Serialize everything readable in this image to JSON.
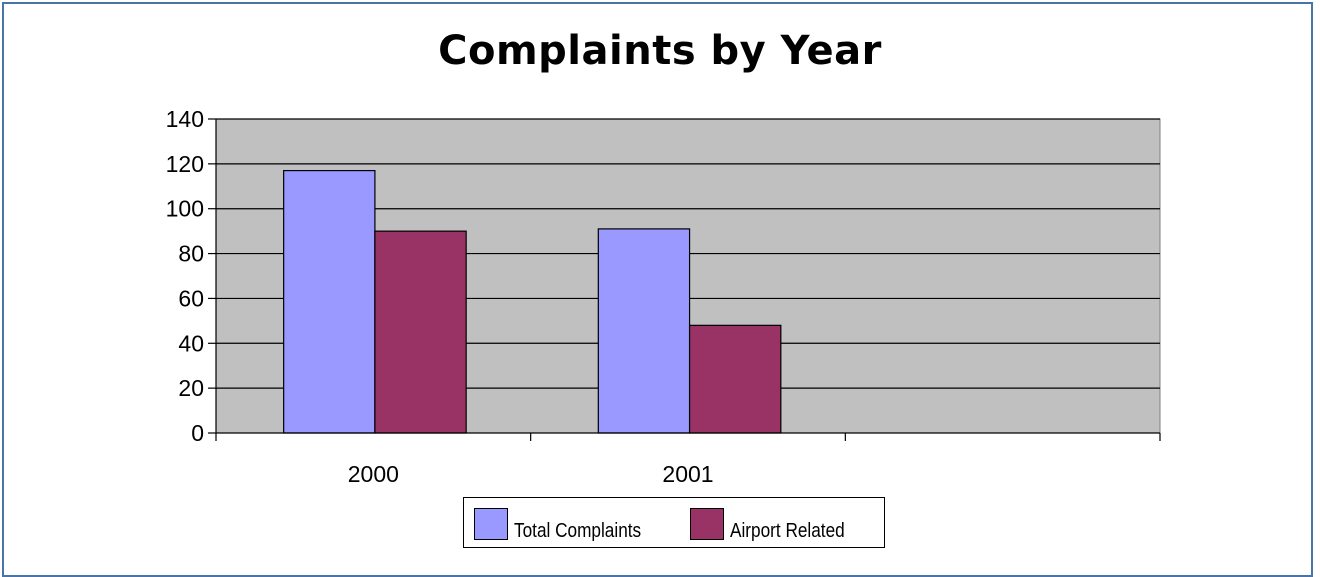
{
  "chart_data": {
    "type": "bar",
    "title": "Complaints by Year",
    "categories": [
      "2000",
      "2001",
      ""
    ],
    "series": [
      {
        "name": "Total Complaints",
        "values": [
          117,
          91,
          null
        ],
        "color": "#9999ff"
      },
      {
        "name": "Airport Related",
        "values": [
          90,
          48,
          null
        ],
        "color": "#993366"
      }
    ],
    "ylim": [
      0,
      140
    ],
    "yticks": [
      0,
      20,
      40,
      60,
      80,
      100,
      120,
      140
    ],
    "xlabel": "",
    "ylabel": "",
    "grid": true,
    "plot_background": "#c0c0c0",
    "legend_position": "bottom"
  }
}
